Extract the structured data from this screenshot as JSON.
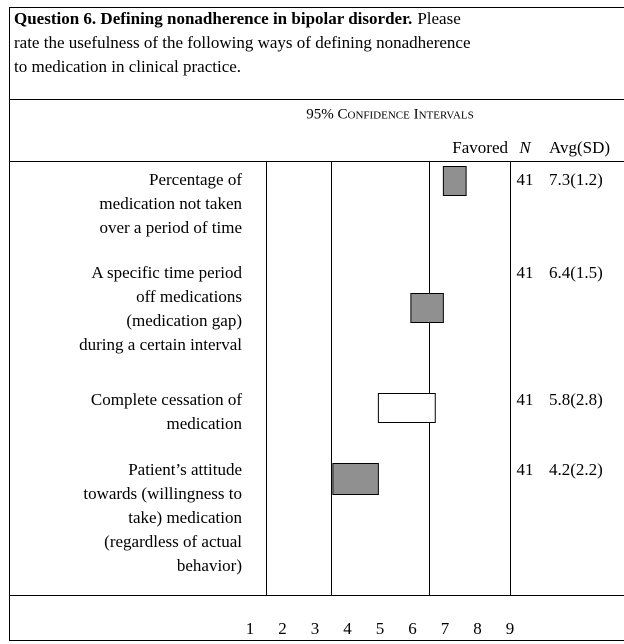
{
  "chart_data": {
    "type": "interval",
    "title": "Question 6. Defining nonadherence in bipolar disorder.",
    "description": [
      "Please",
      "rate the usefulness of the following ways of defining nonadherence",
      "to medication in clinical practice."
    ],
    "axis_title": "95% Confidence Intervals",
    "column_headers": [
      "Favored",
      "N",
      "Avg(SD)"
    ],
    "categories": [
      [
        "Percentage of",
        "medication not taken",
        "over a period of time"
      ],
      [
        "A specific time period",
        "off medications",
        "(medication gap)",
        "during a certain interval"
      ],
      [
        "Complete cessation of",
        "medication"
      ],
      [
        "Patient’s attitude",
        "towards (willingness to",
        "take) medication",
        "(regardless of actual",
        "behavior)"
      ]
    ],
    "lows": [
      6.95,
      5.95,
      4.95,
      3.55
    ],
    "highs": [
      7.65,
      6.95,
      6.7,
      4.95
    ],
    "colors": [
      "#909090",
      "#909090",
      "#ffffff",
      "#909090"
    ],
    "n": [
      41,
      41,
      41,
      41
    ],
    "avg_sd": [
      "7.3(1.2)",
      "6.4(1.5)",
      "5.8(2.8)",
      "4.2(2.2)"
    ],
    "reference_lines": [
      1.5,
      3.5,
      6.5,
      9
    ],
    "xlim": [
      1,
      9
    ],
    "xticks": [
      1,
      2,
      3,
      4,
      5,
      6,
      7,
      8,
      9
    ]
  }
}
